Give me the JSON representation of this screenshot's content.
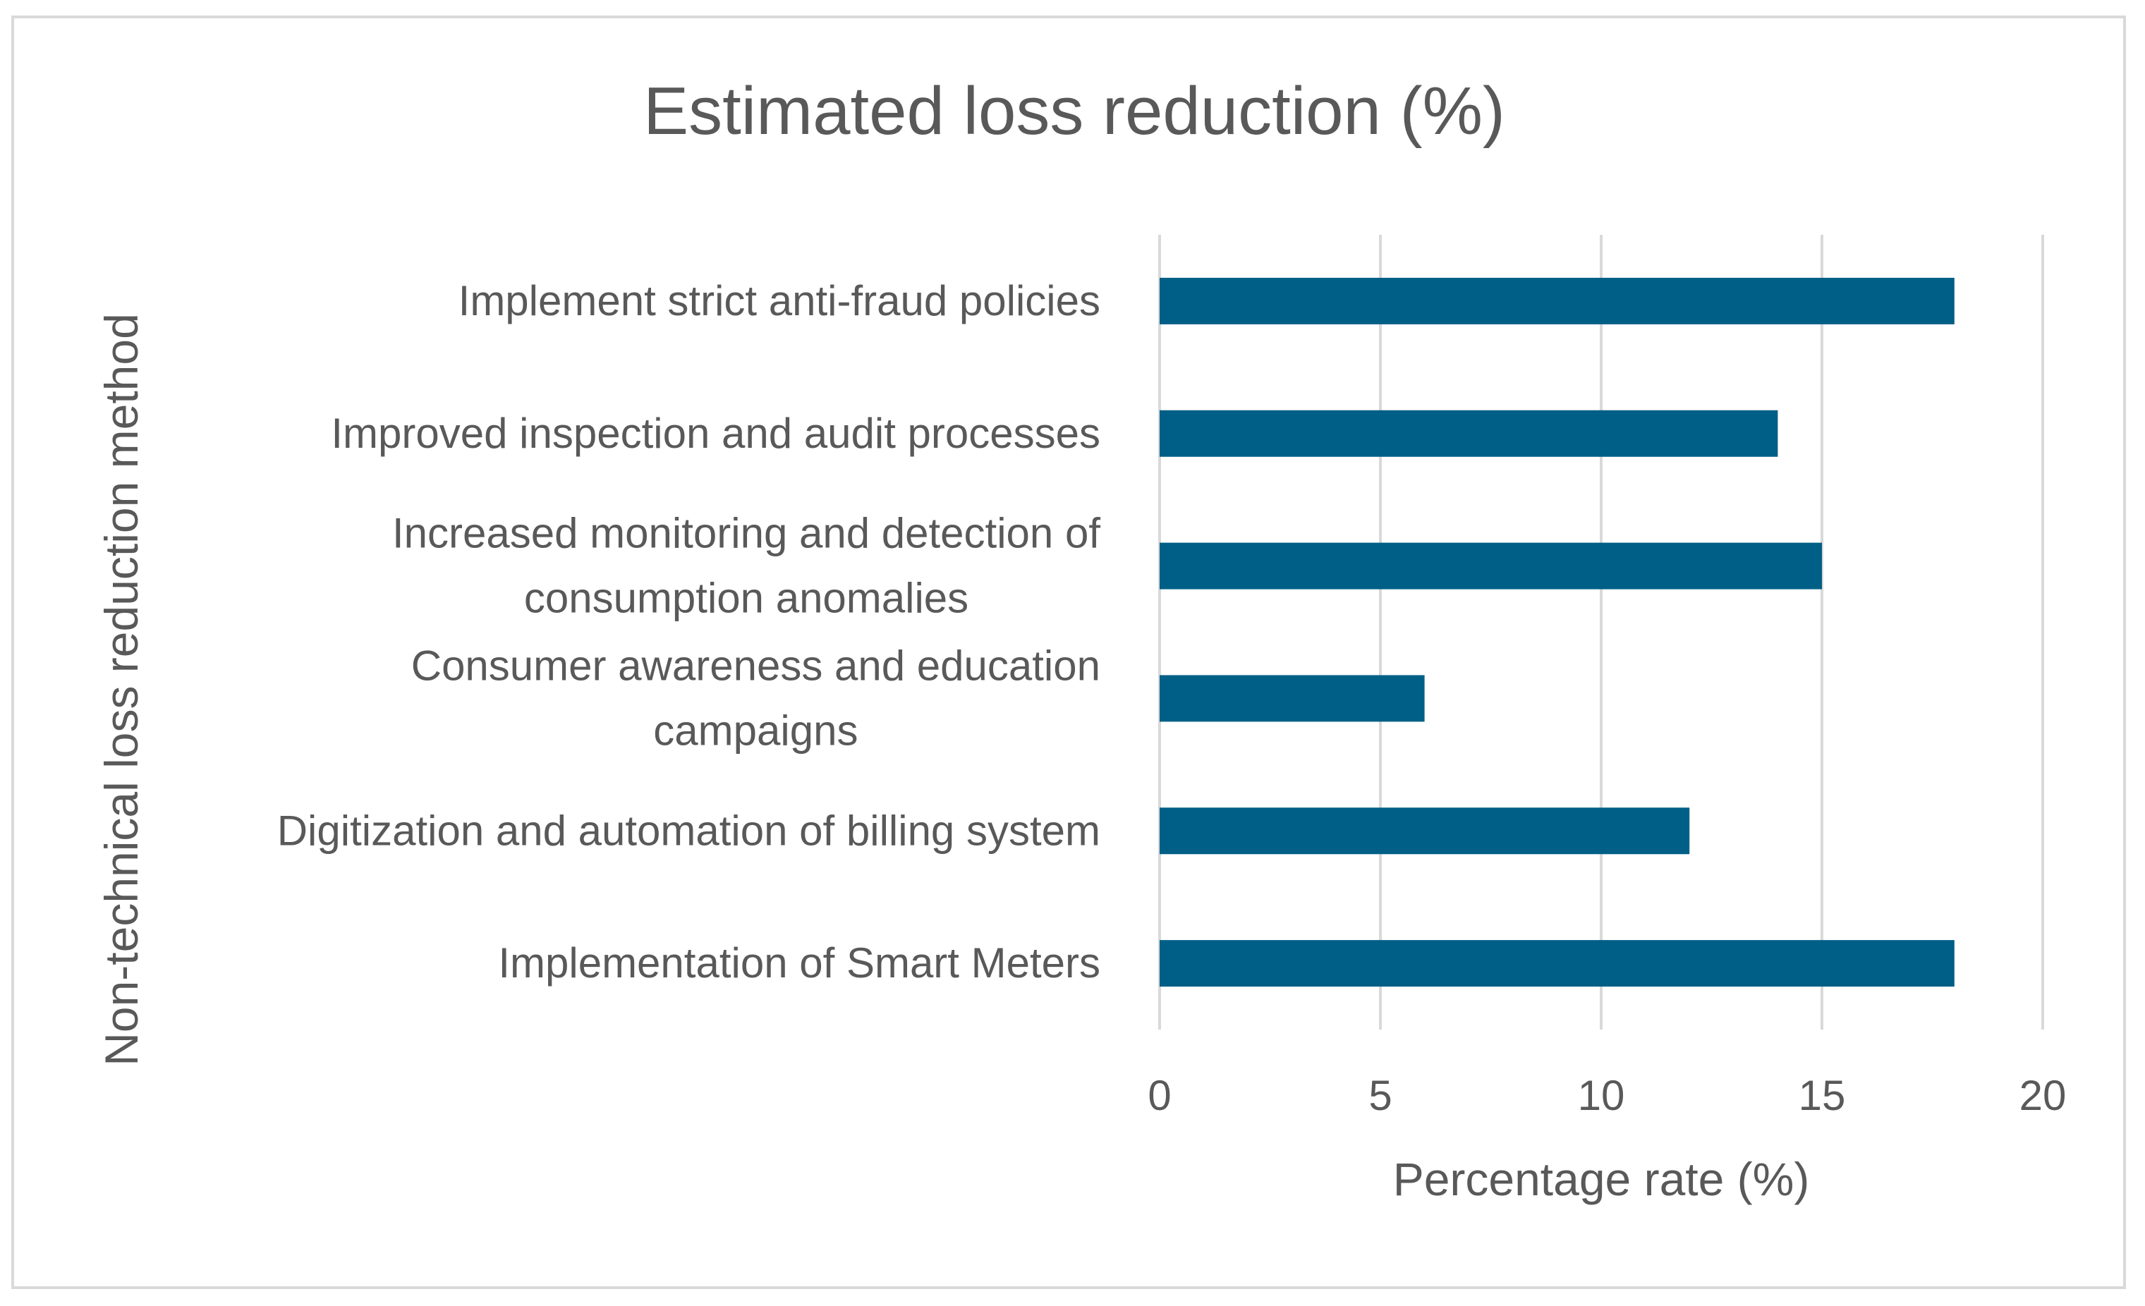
{
  "chart_data": {
    "type": "bar",
    "orientation": "horizontal",
    "title": "Estimated loss reduction (%)",
    "xlabel": "Percentage rate (%)",
    "ylabel": "Non-technical loss reduction method",
    "categories": [
      [
        "Implement strict anti-fraud policies"
      ],
      [
        "Improved inspection and audit processes"
      ],
      [
        "Increased monitoring and detection of",
        "consumption anomalies"
      ],
      [
        "Consumer awareness and education",
        "campaigns"
      ],
      [
        "Digitization and automation of billing system"
      ],
      [
        "Implementation of Smart Meters"
      ]
    ],
    "values": [
      18,
      14,
      15,
      6,
      12,
      18
    ],
    "xlim": [
      0,
      20
    ],
    "xticks": [
      0,
      5,
      10,
      15,
      20
    ],
    "grid": "vertical",
    "legend": "none",
    "bar_color": "#005F86",
    "grid_color": "#d9d9d9",
    "text_color": "#595959"
  }
}
